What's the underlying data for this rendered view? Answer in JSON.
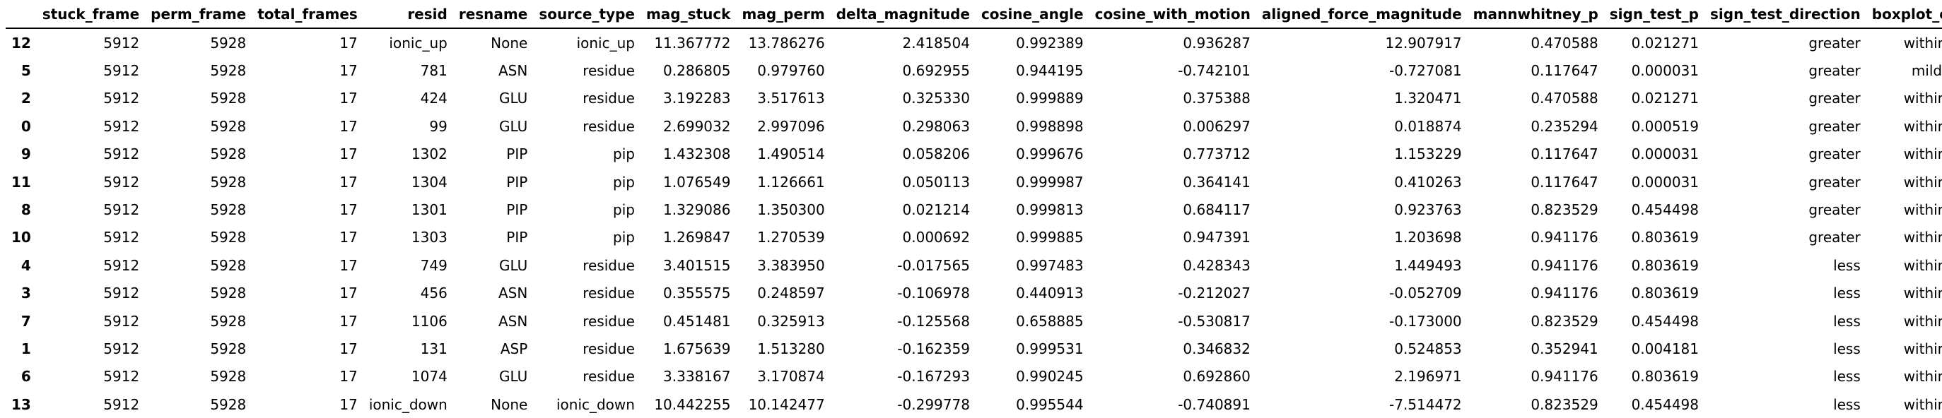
{
  "table": {
    "index_header": "",
    "columns": [
      "stuck_frame",
      "perm_frame",
      "total_frames",
      "resid",
      "resname",
      "source_type",
      "mag_stuck",
      "mag_perm",
      "delta_magnitude",
      "cosine_angle",
      "cosine_with_motion",
      "aligned_force_magnitude",
      "mannwhitney_p",
      "sign_test_p",
      "sign_test_direction",
      "boxplot_outlier"
    ],
    "rows": [
      {
        "index": "12",
        "cells": [
          "5912",
          "5928",
          "17",
          "ionic_up",
          "None",
          "ionic_up",
          "11.367772",
          "13.786276",
          "2.418504",
          "0.992389",
          "0.936287",
          "12.907917",
          "0.470588",
          "0.021271",
          "greater",
          "within range"
        ]
      },
      {
        "index": "5",
        "cells": [
          "5912",
          "5928",
          "17",
          "781",
          "ASN",
          "residue",
          "0.286805",
          "0.979760",
          "0.692955",
          "0.944195",
          "-0.742101",
          "-0.727081",
          "0.117647",
          "0.000031",
          "greater",
          "mild outlier"
        ]
      },
      {
        "index": "2",
        "cells": [
          "5912",
          "5928",
          "17",
          "424",
          "GLU",
          "residue",
          "3.192283",
          "3.517613",
          "0.325330",
          "0.999889",
          "0.375388",
          "1.320471",
          "0.470588",
          "0.021271",
          "greater",
          "within range"
        ]
      },
      {
        "index": "0",
        "cells": [
          "5912",
          "5928",
          "17",
          "99",
          "GLU",
          "residue",
          "2.699032",
          "2.997096",
          "0.298063",
          "0.998898",
          "0.006297",
          "0.018874",
          "0.235294",
          "0.000519",
          "greater",
          "within range"
        ]
      },
      {
        "index": "9",
        "cells": [
          "5912",
          "5928",
          "17",
          "1302",
          "PIP",
          "pip",
          "1.432308",
          "1.490514",
          "0.058206",
          "0.999676",
          "0.773712",
          "1.153229",
          "0.117647",
          "0.000031",
          "greater",
          "within range"
        ]
      },
      {
        "index": "11",
        "cells": [
          "5912",
          "5928",
          "17",
          "1304",
          "PIP",
          "pip",
          "1.076549",
          "1.126661",
          "0.050113",
          "0.999987",
          "0.364141",
          "0.410263",
          "0.117647",
          "0.000031",
          "greater",
          "within range"
        ]
      },
      {
        "index": "8",
        "cells": [
          "5912",
          "5928",
          "17",
          "1301",
          "PIP",
          "pip",
          "1.329086",
          "1.350300",
          "0.021214",
          "0.999813",
          "0.684117",
          "0.923763",
          "0.823529",
          "0.454498",
          "greater",
          "within range"
        ]
      },
      {
        "index": "10",
        "cells": [
          "5912",
          "5928",
          "17",
          "1303",
          "PIP",
          "pip",
          "1.269847",
          "1.270539",
          "0.000692",
          "0.999885",
          "0.947391",
          "1.203698",
          "0.941176",
          "0.803619",
          "greater",
          "within range"
        ]
      },
      {
        "index": "4",
        "cells": [
          "5912",
          "5928",
          "17",
          "749",
          "GLU",
          "residue",
          "3.401515",
          "3.383950",
          "-0.017565",
          "0.997483",
          "0.428343",
          "1.449493",
          "0.941176",
          "0.803619",
          "less",
          "within range"
        ]
      },
      {
        "index": "3",
        "cells": [
          "5912",
          "5928",
          "17",
          "456",
          "ASN",
          "residue",
          "0.355575",
          "0.248597",
          "-0.106978",
          "0.440913",
          "-0.212027",
          "-0.052709",
          "0.941176",
          "0.803619",
          "less",
          "within range"
        ]
      },
      {
        "index": "7",
        "cells": [
          "5912",
          "5928",
          "17",
          "1106",
          "ASN",
          "residue",
          "0.451481",
          "0.325913",
          "-0.125568",
          "0.658885",
          "-0.530817",
          "-0.173000",
          "0.823529",
          "0.454498",
          "less",
          "within range"
        ]
      },
      {
        "index": "1",
        "cells": [
          "5912",
          "5928",
          "17",
          "131",
          "ASP",
          "residue",
          "1.675639",
          "1.513280",
          "-0.162359",
          "0.999531",
          "0.346832",
          "0.524853",
          "0.352941",
          "0.004181",
          "less",
          "within range"
        ]
      },
      {
        "index": "6",
        "cells": [
          "5912",
          "5928",
          "17",
          "1074",
          "GLU",
          "residue",
          "3.338167",
          "3.170874",
          "-0.167293",
          "0.990245",
          "0.692860",
          "2.196971",
          "0.941176",
          "0.803619",
          "less",
          "within range"
        ]
      },
      {
        "index": "13",
        "cells": [
          "5912",
          "5928",
          "17",
          "ionic_down",
          "None",
          "ionic_down",
          "10.442255",
          "10.142477",
          "-0.299778",
          "0.995544",
          "-0.740891",
          "-7.514472",
          "0.823529",
          "0.454498",
          "less",
          "within range"
        ]
      }
    ]
  }
}
